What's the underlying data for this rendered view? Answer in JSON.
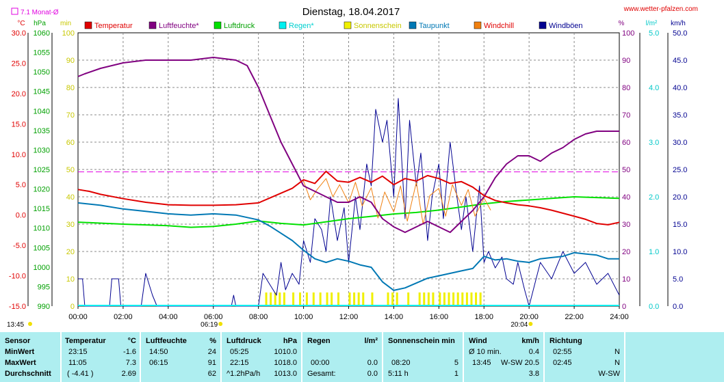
{
  "header": {
    "title": "Dienstag, 18.04.2017",
    "site": "www.wetter-pfalzen.com",
    "monthavg_label": "7.1 Monat-Ø"
  },
  "colors": {
    "temperature": "#e00000",
    "humidity": "#800080",
    "pressure": "#00e000",
    "rain": "#00f0f0",
    "sun": "#f0f000",
    "dewpoint": "#0078b4",
    "windchill": "#f08010",
    "gust": "#000090",
    "monthavg": "#e000e0",
    "table_bg": "#aeeef0"
  },
  "chart_data": {
    "type": "line",
    "title": "Dienstag, 18.04.2017",
    "x_ticks": [
      "00:00",
      "02:00",
      "04:00",
      "06:00",
      "08:00",
      "10:00",
      "12:00",
      "14:00",
      "16:00",
      "18:00",
      "20:00",
      "22:00",
      "24:00"
    ],
    "x_range_hours": [
      0,
      24
    ],
    "legend": [
      "Temperatur",
      "Luftfeuchte*",
      "Luftdruck",
      "Regen*",
      "Sonnenschein",
      "Taupunkt",
      "Windchill",
      "Windböen"
    ],
    "axes": {
      "temp": {
        "unit": "°C",
        "min": -15,
        "max": 30,
        "ticks": [
          "30.0",
          "25.0",
          "20.0",
          "15.0",
          "10.0",
          "5.0",
          "0.0",
          "-5.0",
          "-10.0",
          "-15.0"
        ]
      },
      "pressure": {
        "unit": "hPa",
        "min": 990,
        "max": 1060,
        "ticks": [
          "1060",
          "1055",
          "1050",
          "1045",
          "1040",
          "1035",
          "1030",
          "1025",
          "1020",
          "1015",
          "1010",
          "1005",
          "1000",
          "995",
          "990"
        ]
      },
      "sunmin": {
        "unit": "min",
        "min": 0,
        "max": 100,
        "ticks": [
          "100",
          "90",
          "80",
          "70",
          "60",
          "50",
          "40",
          "30",
          "20",
          "10",
          "0"
        ]
      },
      "humidity": {
        "unit": "%",
        "min": 0,
        "max": 100,
        "ticks": [
          "100",
          "90",
          "80",
          "70",
          "60",
          "50",
          "40",
          "30",
          "20",
          "10",
          "0"
        ]
      },
      "rain": {
        "unit": "l/m²",
        "min": 0,
        "max": 5,
        "ticks": [
          "5.0",
          "4.0",
          "3.0",
          "2.0",
          "1.0",
          "0.0"
        ]
      },
      "wind": {
        "unit": "km/h",
        "min": 0,
        "max": 50,
        "ticks": [
          "50.0",
          "45.0",
          "40.0",
          "35.0",
          "30.0",
          "25.0",
          "20.0",
          "15.0",
          "10.0",
          "5.0",
          "0.0"
        ]
      }
    },
    "month_avg_temp": 7.1,
    "sunrise": "06:19",
    "sunset": "20:04",
    "sun_hours_left_label": "13:45",
    "series": [
      {
        "name": "Temperatur",
        "axis": "temp",
        "color": "#e00000",
        "x": [
          0,
          0.5,
          1,
          2,
          3,
          4,
          5,
          6,
          7,
          8,
          8.5,
          9,
          9.5,
          10,
          10.5,
          11,
          11.5,
          12,
          12.5,
          13,
          13.5,
          14,
          14.5,
          15,
          15.5,
          16,
          16.5,
          17,
          17.5,
          18,
          18.5,
          19,
          19.5,
          20,
          20.5,
          21,
          21.5,
          22,
          22.5,
          23,
          23.5,
          24
        ],
        "y": [
          4.2,
          3.9,
          3.4,
          2.7,
          2.1,
          1.7,
          1.6,
          1.6,
          1.7,
          2.0,
          2.8,
          3.6,
          4.4,
          5.8,
          5.2,
          7.2,
          5.6,
          5.4,
          6.2,
          5.4,
          6.4,
          5.0,
          6.0,
          5.6,
          6.5,
          6.0,
          5.2,
          5.5,
          4.6,
          3.2,
          2.4,
          2.0,
          1.7,
          1.5,
          1.2,
          0.8,
          0.3,
          -0.2,
          -0.7,
          -1.4,
          -1.6,
          -1.2
        ]
      },
      {
        "name": "Luftfeuchte*",
        "axis": "humidity",
        "color": "#800080",
        "x": [
          0,
          0.3,
          1,
          2,
          3,
          4,
          5,
          6,
          7,
          7.5,
          8,
          8.5,
          9,
          9.5,
          10,
          10.5,
          11,
          11.5,
          12,
          12.5,
          13,
          13.5,
          14,
          14.5,
          15,
          15.5,
          16,
          16.5,
          17,
          17.5,
          18,
          18.5,
          19,
          19.5,
          20,
          20.5,
          21,
          21.5,
          22,
          22.5,
          23,
          23.5,
          24
        ],
        "y": [
          84,
          85,
          87,
          89,
          90,
          90,
          90,
          91,
          90,
          88,
          80,
          70,
          60,
          52,
          44,
          42,
          40,
          38,
          38,
          40,
          38,
          32,
          29,
          27,
          29,
          31,
          29,
          27,
          31,
          35,
          40,
          47,
          52,
          55,
          55,
          53,
          56,
          58,
          61,
          63,
          64,
          64,
          64
        ]
      },
      {
        "name": "Luftdruck",
        "axis": "pressure",
        "color": "#00e000",
        "x": [
          0,
          2,
          4,
          5,
          6,
          7,
          8,
          9,
          10,
          11,
          12,
          13,
          14,
          15,
          16,
          17,
          18,
          19,
          20,
          21,
          22,
          23,
          24
        ],
        "y": [
          1011.5,
          1011.0,
          1010.6,
          1010.2,
          1010.4,
          1011.0,
          1011.8,
          1011.2,
          1010.8,
          1011.6,
          1012.4,
          1013.0,
          1013.6,
          1014.0,
          1014.6,
          1015.4,
          1016.2,
          1016.8,
          1017.2,
          1017.6,
          1018.0,
          1017.8,
          1017.6
        ]
      },
      {
        "name": "Taupunkt",
        "axis": "temp",
        "color": "#0078b4",
        "x": [
          0,
          1,
          2,
          3,
          4,
          5,
          6,
          7,
          8,
          8.5,
          9,
          9.5,
          10,
          10.5,
          11,
          11.5,
          12,
          12.5,
          13,
          13.5,
          14,
          14.5,
          15,
          15.5,
          16,
          16.5,
          17,
          17.5,
          18,
          18.5,
          19,
          19.5,
          20,
          20.5,
          21,
          21.5,
          22,
          22.5,
          23,
          23.5,
          24
        ],
        "y": [
          2.0,
          1.6,
          1.0,
          0.6,
          0.2,
          0.0,
          0.2,
          0.0,
          -0.8,
          -1.8,
          -3.0,
          -4.2,
          -5.8,
          -7.2,
          -7.8,
          -7.2,
          -7.6,
          -8.2,
          -8.6,
          -11.0,
          -12.4,
          -12.0,
          -11.2,
          -10.4,
          -10.0,
          -9.6,
          -9.2,
          -8.8,
          -6.8,
          -7.4,
          -7.2,
          -7.6,
          -7.8,
          -7.2,
          -7.0,
          -6.8,
          -6.2,
          -6.4,
          -6.6,
          -7.2,
          -7.2
        ]
      },
      {
        "name": "Windchill",
        "axis": "temp",
        "color": "#f08010",
        "x": [
          10.0,
          10.3,
          10.6,
          11.0,
          11.3,
          11.6,
          12.0,
          12.3,
          12.6,
          13.0,
          13.3,
          13.6,
          14.0,
          14.3,
          14.6,
          15.0,
          15.3,
          15.6,
          16.0,
          16.3,
          16.6,
          17.0,
          17.3,
          17.6,
          18.0,
          18.3
        ],
        "y": [
          5.6,
          2.5,
          4.2,
          6.0,
          3.0,
          5.0,
          2.0,
          5.4,
          1.5,
          4.5,
          -0.5,
          3.8,
          0.5,
          4.8,
          -1.0,
          5.4,
          -1.5,
          3.2,
          4.4,
          -0.2,
          5.0,
          1.6,
          4.2,
          -0.2,
          2.8,
          0.8
        ]
      },
      {
        "name": "Windböen",
        "axis": "wind",
        "color": "#000090",
        "x": [
          0,
          0.2,
          0.3,
          0.5,
          0.6,
          1.4,
          1.5,
          1.8,
          1.9,
          2.8,
          3.0,
          3.3,
          3.5,
          6.8,
          6.9,
          7.0,
          8.0,
          8.2,
          8.5,
          8.8,
          9.0,
          9.2,
          9.5,
          9.8,
          10.0,
          10.3,
          10.5,
          10.8,
          11.0,
          11.2,
          11.5,
          11.8,
          12.0,
          12.3,
          12.5,
          12.8,
          13.0,
          13.2,
          13.5,
          13.7,
          14.0,
          14.2,
          14.5,
          14.7,
          15.0,
          15.2,
          15.5,
          15.7,
          16.0,
          16.2,
          16.5,
          16.8,
          17.0,
          17.2,
          17.5,
          17.8,
          18.0,
          18.2,
          18.5,
          18.8,
          19.0,
          19.3,
          19.5,
          19.8,
          20.0,
          20.5,
          21.0,
          21.5,
          22.0,
          22.5,
          23.0,
          23.5,
          24
        ],
        "y": [
          5,
          5,
          0,
          0,
          0,
          0,
          5,
          5,
          0,
          0,
          6,
          2,
          0,
          0,
          2,
          0,
          0,
          6,
          4,
          2,
          8,
          3,
          6,
          4,
          12,
          8,
          16,
          14,
          10,
          20,
          12,
          18,
          8,
          20,
          14,
          26,
          22,
          36,
          30,
          34,
          20,
          38,
          16,
          34,
          22,
          28,
          12,
          20,
          26,
          16,
          30,
          20,
          14,
          20,
          10,
          22,
          8,
          10,
          7,
          9,
          5,
          4,
          8,
          3,
          0,
          8,
          5,
          10,
          6,
          8,
          4,
          6,
          2
        ]
      }
    ],
    "sunshine": [
      {
        "x": [
          8.3,
          8.5,
          8.7,
          8.9,
          9.1,
          9.5,
          9.8,
          10.1,
          10.4,
          10.7,
          11.0,
          11.2,
          11.5,
          12.0,
          12.2,
          12.4,
          12.6,
          13.0,
          13.7,
          13.9,
          14.1,
          14.6,
          15.1,
          15.3,
          15.5,
          15.7,
          16.0,
          16.2,
          16.4,
          16.6,
          16.8,
          17.0,
          17.2,
          17.4,
          17.6,
          17.8
        ],
        "y": [
          5,
          5,
          5,
          5,
          5,
          5,
          5,
          5,
          5,
          5,
          5,
          5,
          5,
          5,
          5,
          5,
          5,
          5,
          5,
          5,
          5,
          5,
          5,
          5,
          5,
          5,
          5,
          5,
          5,
          5,
          5,
          5,
          5,
          5,
          5,
          5
        ]
      }
    ]
  },
  "table": {
    "sensor": {
      "h": "Sensor",
      "r1": "MinWert",
      "r2": "MaxWert",
      "r3": "Durchschnitt"
    },
    "temp": {
      "h": "Temperatur",
      "u": "°C",
      "r1t": "23:15",
      "r1v": "-1.6",
      "r2t": "11:05",
      "r2v": "7.3",
      "r3t": "( -4.41 )",
      "r3v": "2.69"
    },
    "hum": {
      "h": "Luftfeuchte",
      "u": "%",
      "r1t": "14:50",
      "r1v": "24",
      "r2t": "06:15",
      "r2v": "91",
      "r3v": "62"
    },
    "press": {
      "h": "Luftdruck",
      "u": "hPa",
      "r1t": "05:25",
      "r1v": "1010.0",
      "r2t": "22:15",
      "r2v": "1018.0",
      "r3t": "^1.2hPa/h",
      "r3v": "1013.0"
    },
    "rain": {
      "h": "Regen",
      "u": "l/m²",
      "r2t": "00:00",
      "r2v": "0.0",
      "r3t": "Gesamt:",
      "r3v": "0.0"
    },
    "sun": {
      "h": "Sonnenschein min",
      "r2t": "08:20",
      "r2v": "5",
      "r3t": "5:11 h",
      "r3v": "1"
    },
    "wind": {
      "h": "Wind",
      "u": "km/h",
      "r1t": "Ø 10 min.",
      "r1v": "0.4",
      "r2t": "13:45",
      "r2d": "W-SW",
      "r2v": "20.5",
      "r3v": "3.8"
    },
    "dir": {
      "h": "Richtung",
      "r1t": "02:55",
      "r1v": "N",
      "r2t": "02:45",
      "r2v": "N",
      "r3v": "W-SW"
    }
  }
}
